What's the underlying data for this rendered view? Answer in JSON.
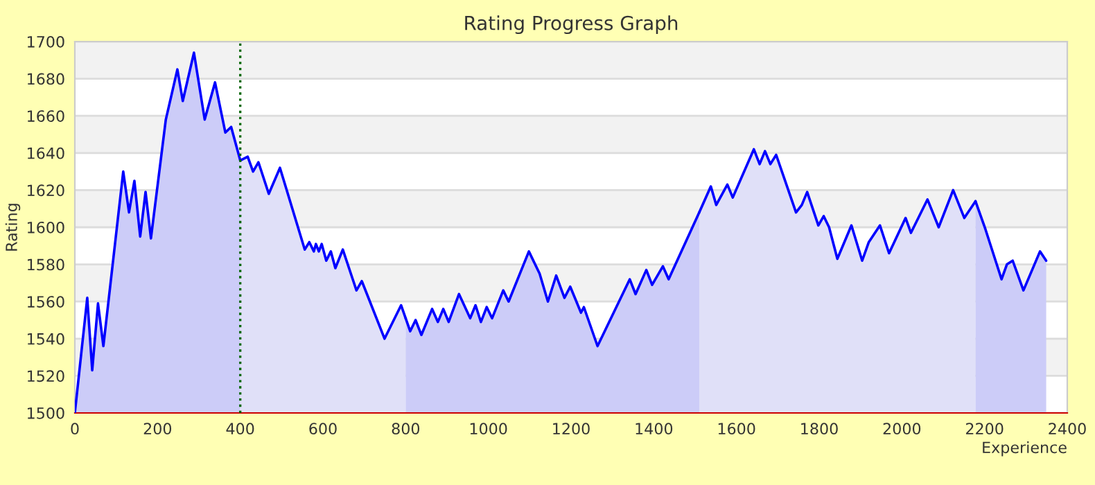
{
  "chart_data": {
    "type": "area",
    "title": "Rating Progress Graph",
    "xlabel": "Experience",
    "ylabel": "Rating",
    "xlim": [
      0,
      2400
    ],
    "xticks": [
      0,
      200,
      400,
      600,
      800,
      1000,
      1200,
      1400,
      1600,
      1800,
      2000,
      2200,
      2400
    ],
    "ylim": [
      1500,
      1700
    ],
    "yticks": [
      1500,
      1520,
      1540,
      1560,
      1580,
      1600,
      1620,
      1640,
      1660,
      1680,
      1700
    ],
    "grid": "y",
    "legend": false,
    "series": [
      {
        "color": "#ccccf8",
        "x": [
          0,
          30,
          42,
          56,
          69,
          117,
          131,
          144,
          158,
          171,
          184,
          220,
          248,
          261,
          288,
          314,
          339,
          364,
          378,
          400
        ],
        "values": [
          1500,
          1562,
          1523,
          1559,
          1536,
          1630,
          1608,
          1625,
          1595,
          1619,
          1594,
          1658,
          1685,
          1668,
          1694,
          1658,
          1678,
          1651,
          1654,
          1636
        ]
      },
      {
        "color": "#e0e0f8",
        "x": [
          400,
          418,
          431,
          444,
          469,
          496,
          556,
          567,
          578,
          583,
          590,
          597,
          608,
          619,
          630,
          648,
          681,
          694,
          749,
          789,
          800
        ],
        "values": [
          1636,
          1638,
          1630,
          1635,
          1618,
          1632,
          1588,
          1592,
          1587,
          1591,
          1587,
          1591,
          1582,
          1587,
          1578,
          1588,
          1566,
          1571,
          1540,
          1558,
          1551
        ]
      },
      {
        "color": "#ccccf8",
        "x": [
          800,
          811,
          824,
          838,
          864,
          878,
          891,
          904,
          929,
          956,
          969,
          982,
          996,
          1009,
          1036,
          1049,
          1098,
          1124,
          1144,
          1164,
          1184,
          1198,
          1224,
          1231,
          1264,
          1342,
          1356,
          1382,
          1396,
          1422,
          1436,
          1510
        ],
        "values": [
          1551,
          1544,
          1550,
          1542,
          1556,
          1549,
          1556,
          1549,
          1564,
          1551,
          1558,
          1549,
          1557,
          1551,
          1566,
          1560,
          1587,
          1575,
          1560,
          1574,
          1562,
          1568,
          1554,
          1557,
          1536,
          1572,
          1564,
          1577,
          1569,
          1579,
          1572,
          1608
        ]
      },
      {
        "color": "#e0e0f8",
        "x": [
          1510,
          1538,
          1551,
          1578,
          1591,
          1642,
          1656,
          1669,
          1682,
          1696,
          1744,
          1758,
          1771,
          1798,
          1811,
          1824,
          1844,
          1878,
          1904,
          1920,
          1947,
          1969,
          2009,
          2022,
          2062,
          2089,
          2124,
          2151,
          2178
        ],
        "values": [
          1608,
          1622,
          1612,
          1623,
          1616,
          1642,
          1634,
          1641,
          1634,
          1639,
          1608,
          1612,
          1619,
          1601,
          1606,
          1600,
          1583,
          1601,
          1582,
          1592,
          1601,
          1586,
          1605,
          1597,
          1615,
          1600,
          1620,
          1605,
          1614
        ]
      },
      {
        "color": "#ccccf8",
        "x": [
          2178,
          2202,
          2241,
          2254,
          2268,
          2294,
          2334,
          2349
        ],
        "values": [
          1614,
          1599,
          1572,
          1580,
          1582,
          1566,
          1587,
          1582
        ]
      }
    ],
    "ref_lines": [
      {
        "axis": "x",
        "value": 400,
        "color": "#006600",
        "line_style": "dotted"
      }
    ]
  }
}
